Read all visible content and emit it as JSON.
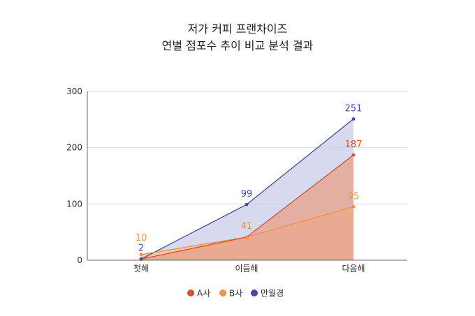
{
  "chart_data": {
    "type": "area",
    "title_lines": [
      "저가 커피 프랜차이즈",
      "연별 점포수 추이 비교 분석 결과"
    ],
    "categories": [
      "첫해",
      "이듬해",
      "다음해"
    ],
    "ylim": [
      0,
      300
    ],
    "yticks": [
      "0",
      "100",
      "200",
      "300"
    ],
    "grid": true,
    "legend_position": "bottom",
    "series": [
      {
        "name": "A사",
        "values": [
          2,
          41,
          187
        ],
        "color": "#d9512c",
        "fill": "#e8a089"
      },
      {
        "name": "B사",
        "values": [
          10,
          41,
          95
        ],
        "color": "#f2923f",
        "fill": "#f5c296"
      },
      {
        "name": "만월경",
        "values": [
          2,
          99,
          251
        ],
        "color": "#3f4ba6",
        "fill": "#c9cde8"
      }
    ],
    "data_labels": [
      {
        "series": 1,
        "index": 0,
        "text": "10"
      },
      {
        "series": 2,
        "index": 0,
        "text": "2"
      },
      {
        "series": 1,
        "index": 1,
        "text": "41"
      },
      {
        "series": 2,
        "index": 1,
        "text": "99"
      },
      {
        "series": 0,
        "index": 2,
        "text": "187"
      },
      {
        "series": 1,
        "index": 2,
        "text": "95"
      },
      {
        "series": 2,
        "index": 2,
        "text": "251"
      }
    ]
  }
}
